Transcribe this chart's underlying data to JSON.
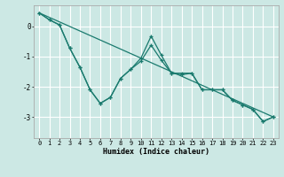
{
  "xlabel": "Humidex (Indice chaleur)",
  "ylabel": "",
  "xlim": [
    -0.5,
    23.5
  ],
  "ylim": [
    -3.7,
    0.7
  ],
  "yticks": [
    0,
    -1,
    -2,
    -3
  ],
  "xticks": [
    0,
    1,
    2,
    3,
    4,
    5,
    6,
    7,
    8,
    9,
    10,
    11,
    12,
    13,
    14,
    15,
    16,
    17,
    18,
    19,
    20,
    21,
    22,
    23
  ],
  "bg_color": "#cce8e4",
  "grid_color": "#ffffff",
  "line_color": "#1a7a6e",
  "line1_x": [
    0,
    1,
    2,
    3,
    4,
    5,
    6,
    7,
    8,
    9,
    10,
    11,
    12,
    13,
    14,
    15,
    16,
    17,
    18,
    19,
    20,
    21,
    22,
    23
  ],
  "line1_y": [
    0.45,
    0.22,
    0.05,
    -0.72,
    -1.35,
    -2.1,
    -2.55,
    -2.35,
    -1.72,
    -1.42,
    -1.15,
    -0.62,
    -1.12,
    -1.55,
    -1.6,
    -1.55,
    -2.1,
    -2.1,
    -2.1,
    -2.45,
    -2.6,
    -2.75,
    -3.15,
    -3.0
  ],
  "line2_x": [
    0,
    1,
    2,
    3,
    4,
    5,
    6,
    7,
    8,
    9,
    10,
    11,
    12,
    13,
    14,
    15,
    16,
    17,
    18,
    19,
    20,
    21,
    22,
    23
  ],
  "line2_y": [
    0.45,
    0.22,
    0.05,
    -0.72,
    -1.35,
    -2.1,
    -2.55,
    -2.35,
    -1.72,
    -1.42,
    -1.05,
    -0.32,
    -0.95,
    -1.55,
    -1.55,
    -1.55,
    -2.1,
    -2.1,
    -2.1,
    -2.45,
    -2.6,
    -2.75,
    -3.15,
    -3.0
  ],
  "line3_x": [
    0,
    23
  ],
  "line3_y": [
    0.45,
    -3.0
  ]
}
